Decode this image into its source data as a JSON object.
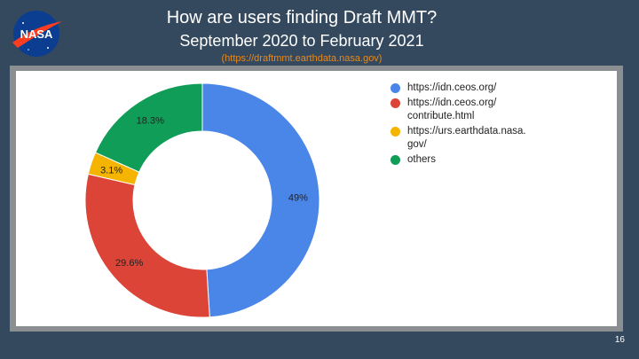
{
  "header": {
    "title": "How are users finding Draft MMT?",
    "subtitle": "September 2020 to February 2021",
    "url": "(https://draftmmt.earthdata.nasa.gov)"
  },
  "logo": {
    "text": "NASA"
  },
  "page_number": "16",
  "chart_data": {
    "type": "pie",
    "donut": true,
    "categories": [
      "https://idn.ceos.org/",
      "https://idn.ceos.org/\ncontribute.html",
      "https://urs.earthdata.nasa.\ngov/",
      "others"
    ],
    "values": [
      49,
      29.6,
      3.1,
      18.3
    ],
    "slice_labels": [
      "49%",
      "29.6%",
      "3.1%",
      "18.3%"
    ],
    "colors": [
      "#4a86e8",
      "#db4437",
      "#f4b400",
      "#0f9d58"
    ],
    "legend_position": "right"
  }
}
